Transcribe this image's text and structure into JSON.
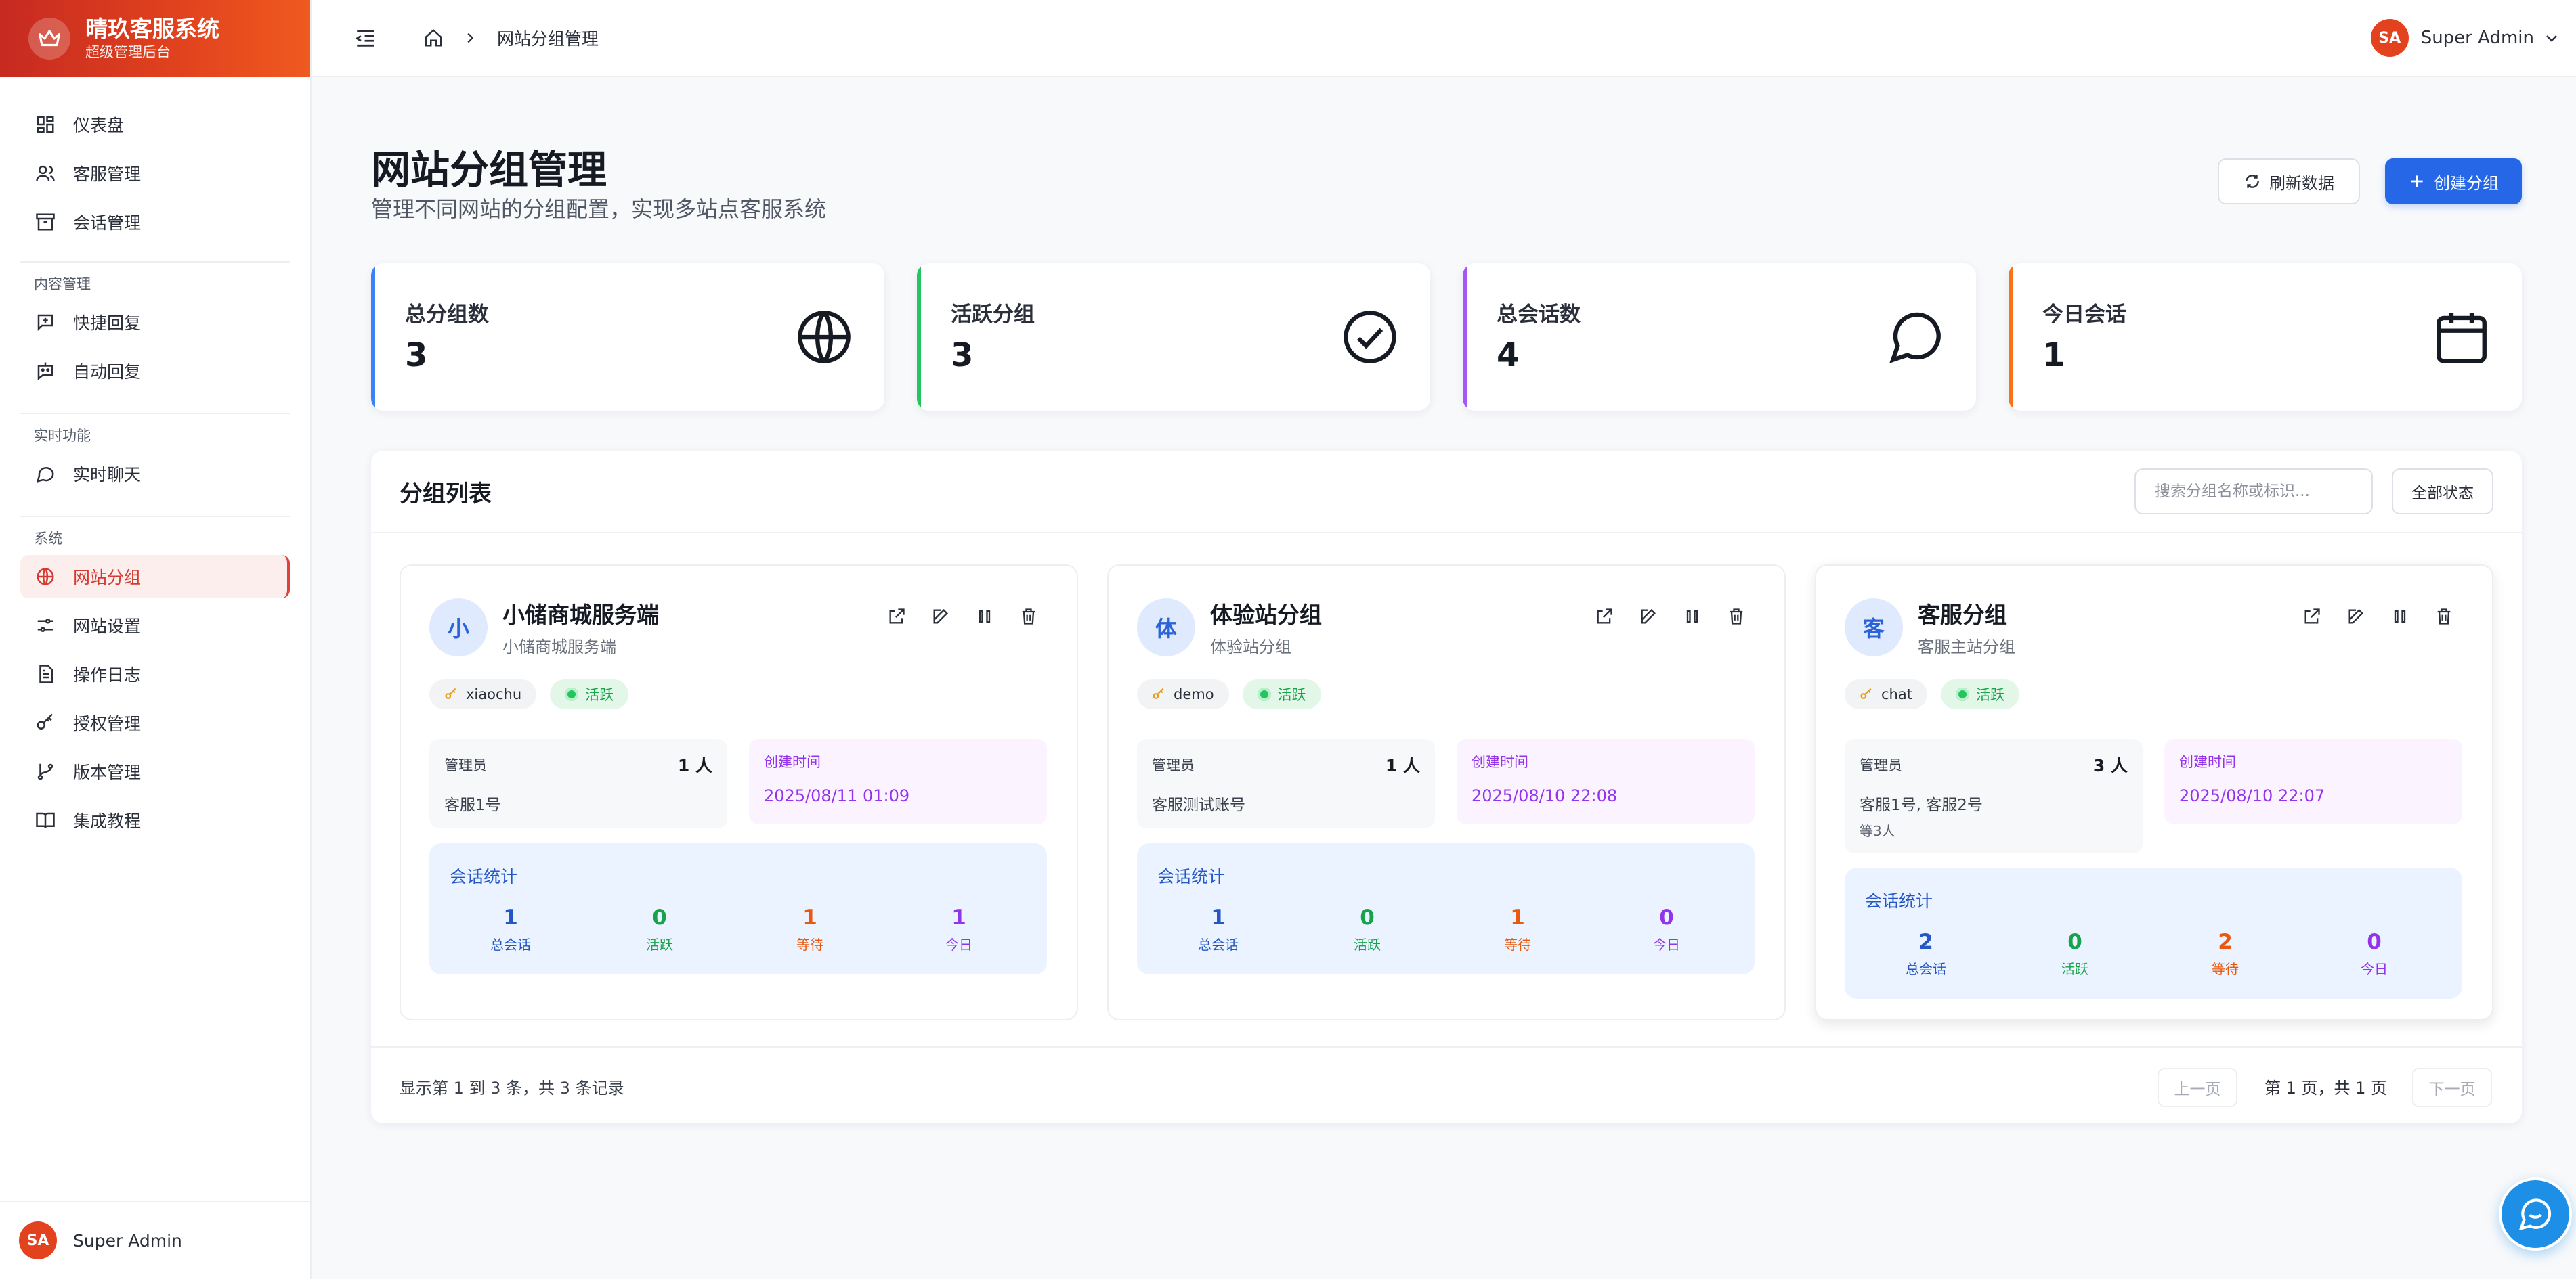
{
  "app": {
    "title": "晴玖客服系统",
    "subtitle": "超级管理后台"
  },
  "sidebar": {
    "items": [
      {
        "label": "仪表盘",
        "icon": "dashboard-icon"
      },
      {
        "label": "客服管理",
        "icon": "users-icon"
      },
      {
        "label": "会话管理",
        "icon": "archive-icon"
      }
    ],
    "sections": [
      {
        "title": "内容管理",
        "items": [
          {
            "label": "快捷回复",
            "icon": "message-plus-icon"
          },
          {
            "label": "自动回复",
            "icon": "bot-icon"
          }
        ]
      },
      {
        "title": "实时功能",
        "items": [
          {
            "label": "实时聊天",
            "icon": "chat-bubble-icon"
          }
        ]
      },
      {
        "title": "系统",
        "items": [
          {
            "label": "网站分组",
            "icon": "globe-icon",
            "active": true
          },
          {
            "label": "网站设置",
            "icon": "sliders-icon"
          },
          {
            "label": "操作日志",
            "icon": "file-text-icon"
          },
          {
            "label": "授权管理",
            "icon": "key-icon"
          },
          {
            "label": "版本管理",
            "icon": "git-branch-icon"
          },
          {
            "label": "集成教程",
            "icon": "book-icon"
          }
        ]
      }
    ],
    "footer_user": "Super Admin",
    "footer_initials": "SA"
  },
  "topbar": {
    "breadcrumb": "网站分组管理",
    "user_name": "Super Admin",
    "user_initials": "SA"
  },
  "page": {
    "title": "网站分组管理",
    "subtitle": "管理不同网站的分组配置，实现多站点客服系统",
    "refresh_label": "刷新数据",
    "create_label": "创建分组"
  },
  "stats": [
    {
      "label": "总分组数",
      "value": "3",
      "color": "#3b82f6",
      "icon": "globe-icon"
    },
    {
      "label": "活跃分组",
      "value": "3",
      "color": "#22c55e",
      "icon": "check-circle-icon"
    },
    {
      "label": "总会话数",
      "value": "4",
      "color": "#a855f7",
      "icon": "chat-bubble-icon"
    },
    {
      "label": "今日会话",
      "value": "1",
      "color": "#f97316",
      "icon": "calendar-icon"
    }
  ],
  "list": {
    "title": "分组列表",
    "search_placeholder": "搜索分组名称或标识...",
    "status_filter": "全部状态",
    "groups": [
      {
        "avatar": "小",
        "name": "小储商城服务端",
        "desc": "小储商城服务端",
        "key": "xiaochu",
        "status": "活跃",
        "admin_label": "管理员",
        "admin_count": "1 人",
        "admins": "客服1号",
        "admins_more": "",
        "created_label": "创建时间",
        "created": "2025/08/11 01:09",
        "conv_title": "会话统计",
        "conv": [
          {
            "num": "1",
            "cap": "总会话"
          },
          {
            "num": "0",
            "cap": "活跃"
          },
          {
            "num": "1",
            "cap": "等待"
          },
          {
            "num": "1",
            "cap": "今日"
          }
        ]
      },
      {
        "avatar": "体",
        "name": "体验站分组",
        "desc": "体验站分组",
        "key": "demo",
        "status": "活跃",
        "admin_label": "管理员",
        "admin_count": "1 人",
        "admins": "客服测试账号",
        "admins_more": "",
        "created_label": "创建时间",
        "created": "2025/08/10 22:08",
        "conv_title": "会话统计",
        "conv": [
          {
            "num": "1",
            "cap": "总会话"
          },
          {
            "num": "0",
            "cap": "活跃"
          },
          {
            "num": "1",
            "cap": "等待"
          },
          {
            "num": "0",
            "cap": "今日"
          }
        ]
      },
      {
        "avatar": "客",
        "name": "客服分组",
        "desc": "客服主站分组",
        "key": "chat",
        "status": "活跃",
        "admin_label": "管理员",
        "admin_count": "3 人",
        "admins": "客服1号, 客服2号",
        "admins_more": "等3人",
        "created_label": "创建时间",
        "created": "2025/08/10 22:07",
        "conv_title": "会话统计",
        "conv": [
          {
            "num": "2",
            "cap": "总会话"
          },
          {
            "num": "0",
            "cap": "活跃"
          },
          {
            "num": "2",
            "cap": "等待"
          },
          {
            "num": "0",
            "cap": "今日"
          }
        ]
      }
    ],
    "footer_info": "显示第 1 到 3 条，共 3 条记录",
    "prev_label": "上一页",
    "page_info": "第 1 页，共 1 页",
    "next_label": "下一页"
  },
  "colors": {
    "brand": "#e2431e",
    "primary": "#2567e6",
    "conv_total": "#2457c5",
    "conv_active": "#16a34a",
    "conv_waiting": "#ea580c",
    "conv_today": "#9333ea"
  }
}
